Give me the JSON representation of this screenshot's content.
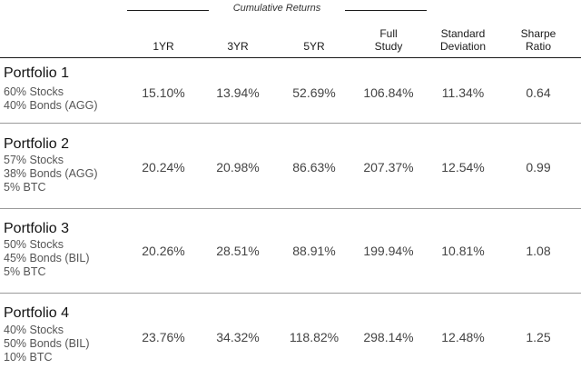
{
  "group_header": "Cumulative Returns",
  "columns": [
    {
      "lines": [
        "1YR"
      ]
    },
    {
      "lines": [
        "3YR"
      ]
    },
    {
      "lines": [
        "5YR"
      ]
    },
    {
      "lines": [
        "Full",
        "Study"
      ]
    },
    {
      "lines": [
        "Standard",
        "Deviation"
      ]
    },
    {
      "lines": [
        "Sharpe",
        "Ratio"
      ]
    }
  ],
  "rows": [
    {
      "name": "Portfolio 1",
      "details": [
        "60% Stocks",
        "40% Bonds (AGG)"
      ],
      "values": [
        "15.10%",
        "13.94%",
        "52.69%",
        "106.84%",
        "11.34%",
        "0.64"
      ]
    },
    {
      "name": "Portfolio 2",
      "details": [
        "57% Stocks",
        "38% Bonds (AGG)",
        "5% BTC"
      ],
      "values": [
        "20.24%",
        "20.98%",
        "86.63%",
        "207.37%",
        "12.54%",
        "0.99"
      ]
    },
    {
      "name": "Portfolio 3",
      "details": [
        "50% Stocks",
        "45% Bonds (BIL)",
        "5% BTC"
      ],
      "values": [
        "20.26%",
        "28.51%",
        "88.91%",
        "199.94%",
        "10.81%",
        "1.08"
      ]
    },
    {
      "name": "Portfolio 4",
      "details": [
        "40% Stocks",
        "50% Bonds (BIL)",
        "10% BTC"
      ],
      "values": [
        "23.76%",
        "34.32%",
        "118.82%",
        "298.14%",
        "12.48%",
        "1.25"
      ]
    }
  ]
}
